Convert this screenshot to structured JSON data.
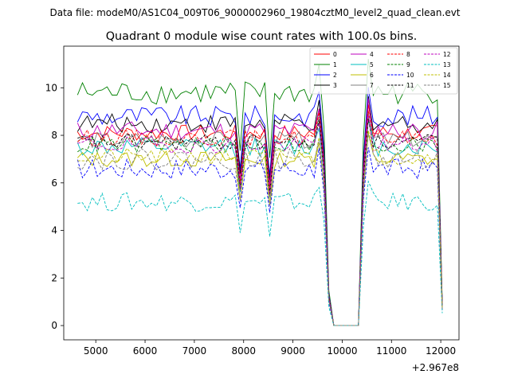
{
  "chart_data": {
    "type": "line",
    "suptitle": "Data file: modeM0/AS1C04_009T06_9000002960_19804cztM0_level2_quad_clean.evt",
    "title": "Quadrant 0 module wise count rates with 100.0s bins.",
    "xlabel": "",
    "ylabel": "",
    "x_offset_label": "+2.967e8",
    "xlim": [
      4350,
      12370
    ],
    "ylim": [
      -0.6,
      11.75
    ],
    "xticks": [
      5000,
      6000,
      7000,
      8000,
      9000,
      10000,
      11000,
      12000
    ],
    "yticks": [
      0,
      2,
      4,
      6,
      8,
      10
    ],
    "legend_position": "top-right",
    "series": [
      {
        "name": "0",
        "color": "#ff0000",
        "dash": "solid",
        "base": 8.1,
        "amp": 0.35
      },
      {
        "name": "1",
        "color": "#008000",
        "dash": "solid",
        "base": 9.8,
        "amp": 0.5
      },
      {
        "name": "2",
        "color": "#0000ff",
        "dash": "solid",
        "base": 8.8,
        "amp": 0.45
      },
      {
        "name": "3",
        "color": "#000000",
        "dash": "solid",
        "base": 8.5,
        "amp": 0.4
      },
      {
        "name": "4",
        "color": "#bf00bf",
        "dash": "solid",
        "base": 8.2,
        "amp": 0.4
      },
      {
        "name": "5",
        "color": "#00bfbf",
        "dash": "solid",
        "base": 7.5,
        "amp": 0.4
      },
      {
        "name": "6",
        "color": "#bfbf00",
        "dash": "solid",
        "base": 7.0,
        "amp": 0.35
      },
      {
        "name": "7",
        "color": "#808080",
        "dash": "solid",
        "base": 7.8,
        "amp": 0.35
      },
      {
        "name": "8",
        "color": "#ff0000",
        "dash": "dashed",
        "base": 7.9,
        "amp": 0.35
      },
      {
        "name": "9",
        "color": "#008000",
        "dash": "dashed",
        "base": 7.6,
        "amp": 0.35
      },
      {
        "name": "10",
        "color": "#0000ff",
        "dash": "dashed",
        "base": 6.6,
        "amp": 0.45
      },
      {
        "name": "11",
        "color": "#000000",
        "dash": "dashed",
        "base": 7.7,
        "amp": 0.35
      },
      {
        "name": "12",
        "color": "#bf00bf",
        "dash": "dashed",
        "base": 7.6,
        "amp": 0.35
      },
      {
        "name": "13",
        "color": "#00bfbf",
        "dash": "dashed",
        "base": 5.2,
        "amp": 0.4
      },
      {
        "name": "14",
        "color": "#bfbf00",
        "dash": "dashed",
        "base": 7.1,
        "amp": 0.35
      },
      {
        "name": "15",
        "color": "#808080",
        "dash": "dashed",
        "base": 7.0,
        "amp": 0.45
      }
    ],
    "x_start": 4630,
    "x_step": 100,
    "x_end": 12030,
    "gap_x": [
      9830,
      10330
    ],
    "dip_x": [
      7930,
      8530
    ],
    "dip_factor": [
      0.75,
      0.72
    ],
    "ramp": {
      "9630": 0.85,
      "9730": 0.15,
      "10430": 0.8,
      "12030": 0.1
    },
    "spike": {
      "9530": 1.12,
      "10530": 1.15
    }
  }
}
